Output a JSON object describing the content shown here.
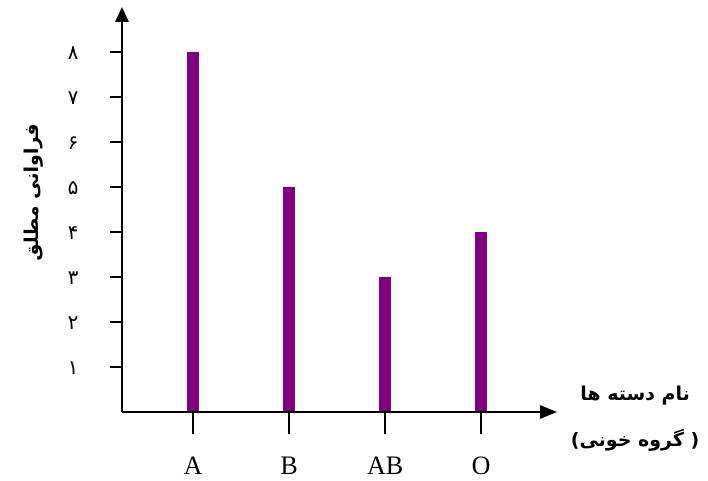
{
  "chart_data": {
    "type": "bar",
    "categories": [
      "A",
      "B",
      "AB",
      "O"
    ],
    "values": [
      8,
      5,
      3,
      4
    ],
    "y_ticks": [
      1,
      2,
      3,
      4,
      5,
      6,
      7,
      8
    ],
    "y_tick_labels": [
      "۱",
      "۲",
      "۳",
      "۴",
      "۵",
      "۶",
      "۷",
      "۸"
    ],
    "ylim": [
      0,
      8
    ],
    "ylabel": "فراوانی مطلق",
    "xlabel_line1": "نام دسته ها",
    "xlabel_line2": "( گروه خونی)",
    "bar_color": "#800080",
    "grid": false
  }
}
